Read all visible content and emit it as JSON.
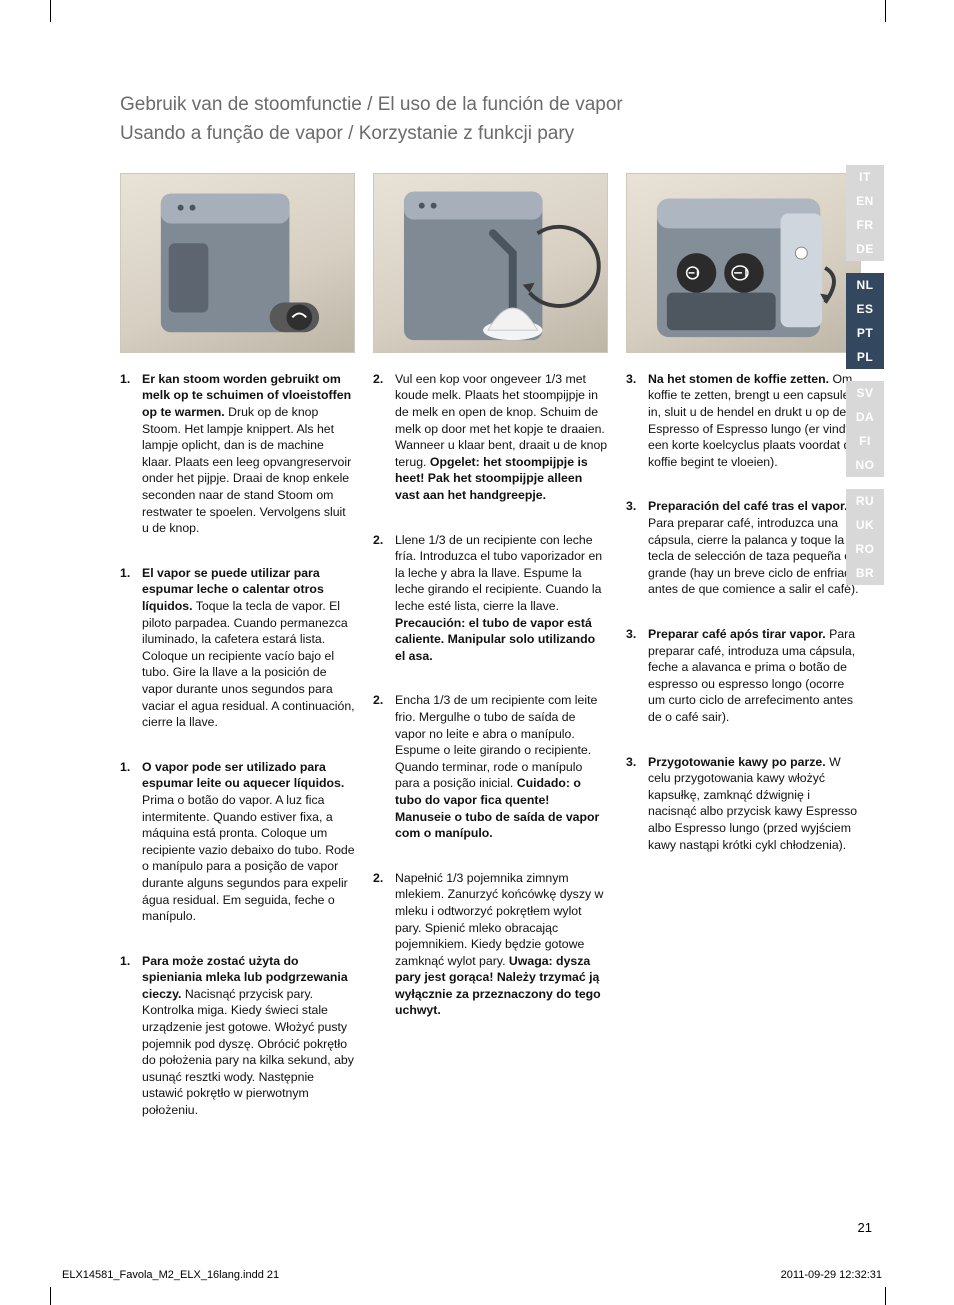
{
  "heading": {
    "line1a": "Gebruik van de stoomfunctie",
    "line1b": "El uso de la función de vapor",
    "line2a": "Usando a função de vapor",
    "line2b": "Korzystanie z funkcji pary",
    "sep": "  /  "
  },
  "langs": {
    "g1": [
      "IT",
      "EN",
      "FR",
      "DE"
    ],
    "g2": [
      "NL",
      "ES",
      "PT",
      "PL"
    ],
    "g3": [
      "SV",
      "DA",
      "FI",
      "NO"
    ],
    "g4": [
      "RU",
      "UK",
      "RO",
      "BR"
    ],
    "activeGroup": 1
  },
  "columns": [
    {
      "steps": [
        {
          "n": "1.",
          "lead": "Er kan stoom worden gebruikt om melk op te schuimen of vloeistoffen op te warmen.",
          "rest": " Druk op de knop Stoom. Het lampje knippert. Als het lampje oplicht, dan is de machine klaar. Plaats een leeg opvangreservoir onder het pijpje. Draai de knop enkele seconden naar de stand Stoom om restwater te spoelen. Vervolgens sluit u de knop."
        },
        {
          "n": "1.",
          "lead": "El vapor se puede utilizar para espumar leche o calentar otros líquidos.",
          "rest": " Toque la tecla de vapor. El piloto parpadea. Cuando permanezca iluminado, la cafetera estará lista. Coloque un recipiente vacío bajo el tubo. Gire la llave a la posición de vapor durante unos segundos para vaciar el agua residual. A continuación, cierre la llave."
        },
        {
          "n": "1.",
          "lead": "O vapor pode ser utilizado para espumar leite ou aquecer líquidos.",
          "rest": " Prima o botão do vapor. A luz fica intermitente. Quando estiver fixa, a máquina está pronta. Coloque um recipiente vazio debaixo do tubo. Rode o manípulo para a posição de vapor durante alguns segundos para expelir água residual. Em seguida, feche o manípulo."
        },
        {
          "n": "1.",
          "lead": "Para może zostać użyta do spieniania mleka lub podgrzewania cieczy.",
          "rest": " Nacisnąć przycisk pary. Kontrolka miga. Kiedy świeci stale urządzenie jest gotowe. Włożyć pusty pojemnik pod dyszę. Obrócić pokrętło do położenia pary na kilka sekund, aby usunąć resztki wody. Następnie ustawić pokrętło w pierwotnym położeniu."
        }
      ]
    },
    {
      "steps": [
        {
          "n": "2.",
          "lead": "",
          "rest": "Vul een kop voor ongeveer 1/3 met koude melk. Plaats het stoompijpje in de melk en open de knop. Schuim de melk op door met het kopje te draaien. Wanneer u klaar bent, draait u de knop terug. ",
          "tail": "Opgelet: het stoompijpje is heet! Pak het stoompijpje alleen vast aan het handgreepje."
        },
        {
          "n": "2.",
          "lead": "",
          "rest": "Llene 1/3 de un recipiente con leche fría. Introduzca el tubo vaporizador en la leche y abra la llave. Espume la leche girando el recipiente. Cuando la leche esté lista, cierre la llave. ",
          "tail": "Precaución: el tubo de vapor está caliente. Manipular solo utilizando el asa."
        },
        {
          "n": "2.",
          "lead": "",
          "rest": "Encha 1/3 de um recipiente com leite frio. Mergulhe o tubo de saída de vapor no leite e abra o manípulo. Espume o leite girando o recipiente. Quando terminar, rode o manípulo para a posição inicial. ",
          "tail": "Cuidado: o tubo do vapor fica quente! Manuseie o tubo de saída de vapor com o manípulo."
        },
        {
          "n": "2.",
          "lead": "",
          "rest": "Napełnić 1/3 pojemnika zimnym mlekiem. Zanurzyć końcówkę dyszy w mleku i odtworzyć pokrętłem wylot pary. Spienić mleko obracając pojemnikiem. Kiedy będzie gotowe zamknąć wylot pary. ",
          "tail": "Uwaga: dysza pary jest gorąca! Należy trzymać ją wyłącznie za przeznaczony do tego uchwyt."
        }
      ]
    },
    {
      "steps": [
        {
          "n": "3.",
          "lead": "Na het stomen de koffie zetten.",
          "rest": " Om koffie te zetten, brengt u een capsule in, sluit u de hendel en drukt u op de Espresso of Espresso lungo (er vindt een korte koelcyclus plaats voordat de koffie begint te vloeien)."
        },
        {
          "n": "3.",
          "lead": "Preparación del café tras el vapor.",
          "rest": " Para preparar café, introduzca una cápsula, cierre la palanca y toque la tecla de selección de taza pequeña o grande (hay un breve ciclo de enfriado antes de que comience a salir el café)."
        },
        {
          "n": "3.",
          "lead": "Preparar café após tirar vapor.",
          "rest": " Para preparar café, introduza uma cápsula, feche a alavanca e prima o botão de espresso ou espresso longo (ocorre um curto ciclo de arrefecimento antes de o café sair)."
        },
        {
          "n": "3.",
          "lead": "Przygotowanie kawy po parze.",
          "rest": " W celu przygotowania kawy włożyć kapsułkę, zamknąć dźwignię i nacisnąć albo przycisk kawy Espresso albo Espresso lungo (przed wyjściem kawy nastąpi krótki cykl chłodzenia)."
        }
      ]
    }
  ],
  "pageNumber": "21",
  "footer": {
    "left": "ELX14581_Favola_M2_ELX_16lang.indd   21",
    "right": "2011-09-29   12:32:31"
  },
  "colors": {
    "headingGrey": "#6b6b6b",
    "langInactiveBg": "#d8d8d8",
    "langActiveBg": "#33475f",
    "illusBg1": "#e9e2d6",
    "illusBg2": "#bdb5a6"
  }
}
